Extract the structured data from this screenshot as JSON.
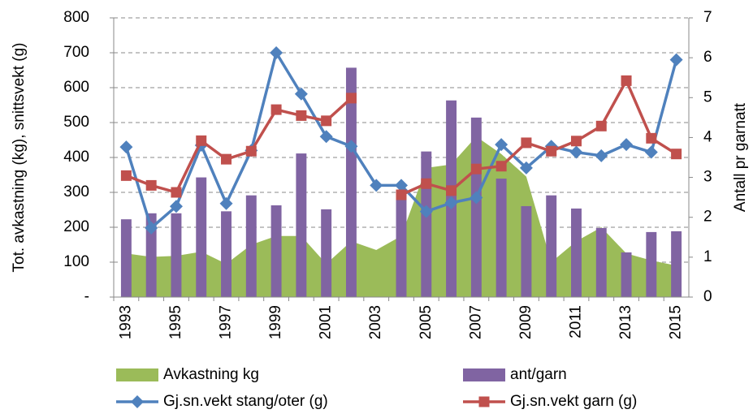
{
  "chart_data": {
    "type": "combo",
    "categories": [
      "1993",
      null,
      "1995",
      null,
      "1997",
      null,
      "1999",
      null,
      "2001",
      null,
      "2003",
      null,
      "2005",
      null,
      "2007",
      null,
      "2009",
      null,
      "2011",
      null,
      "2013",
      null,
      "2015"
    ],
    "y_label": "Tot. avkastning (kg), snittsvekt (g)",
    "y2_label": "Antall pr garnatt",
    "ylim": [
      0,
      800
    ],
    "yticks": [
      {
        "value": 0,
        "label": "-"
      },
      100,
      200,
      300,
      400,
      500,
      600,
      700,
      800
    ],
    "y2lim": [
      0,
      7
    ],
    "y2ticks": [
      0,
      1,
      2,
      3,
      4,
      5,
      6,
      7
    ],
    "grid": true,
    "legend": "bottom",
    "series": [
      {
        "name": "Avkastning kg",
        "type": "area",
        "color": "#9bbb59",
        "values": [
          125,
          115,
          118,
          130,
          95,
          150,
          175,
          175,
          95,
          160,
          135,
          175,
          370,
          380,
          460,
          410,
          345,
          100,
          160,
          200,
          125,
          105,
          90
        ]
      },
      {
        "name": "ant/garn",
        "type": "bar",
        "axis": "y2",
        "color": "#8064a2",
        "values": [
          1.95,
          2.1,
          2.1,
          3.0,
          2.15,
          2.55,
          2.3,
          3.6,
          2.2,
          5.75,
          null,
          2.6,
          3.65,
          4.93,
          4.5,
          2.97,
          2.28,
          2.55,
          2.22,
          1.73,
          1.12,
          1.63,
          1.65
        ]
      },
      {
        "name": "Gj.sn.vekt stang/oter (g)",
        "type": "line",
        "marker": "diamond",
        "color": "#4f81bd",
        "values": [
          430,
          198,
          260,
          435,
          268,
          420,
          700,
          582,
          460,
          432,
          320,
          320,
          245,
          270,
          285,
          437,
          370,
          432,
          415,
          405,
          437,
          415,
          680
        ]
      },
      {
        "name": "Gj.sn.vekt garn (g)",
        "type": "line",
        "marker": "square",
        "color": "#c0504d",
        "values": [
          348,
          320,
          300,
          448,
          395,
          418,
          537,
          520,
          505,
          570,
          null,
          293,
          325,
          305,
          367,
          375,
          442,
          418,
          447,
          490,
          620,
          455,
          410
        ]
      }
    ]
  }
}
